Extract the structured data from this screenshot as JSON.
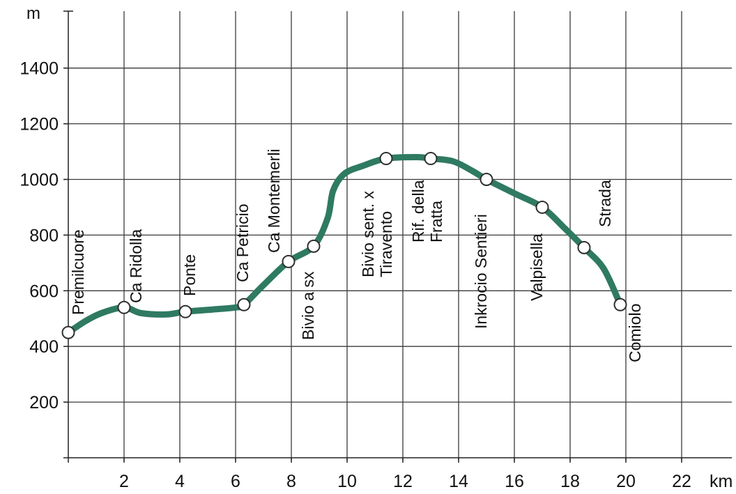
{
  "chart_data": {
    "type": "line",
    "y_unit": "m",
    "x_unit": "km",
    "xlim": [
      0,
      24
    ],
    "ylim": [
      0,
      1550
    ],
    "grid": true,
    "line_color": "#2f7a62",
    "x_ticks": [
      2,
      4,
      6,
      8,
      10,
      12,
      14,
      16,
      18,
      20,
      22
    ],
    "x_tick_labels": [
      "2",
      "4",
      "6",
      "8",
      "10",
      "12",
      "14",
      "16",
      "18",
      "20",
      "22"
    ],
    "y_ticks": [
      200,
      400,
      600,
      800,
      1000,
      1200,
      1400
    ],
    "y_tick_labels": [
      "200",
      "400",
      "600",
      "800",
      "1000",
      "1200",
      "1400"
    ],
    "profile": [
      [
        0,
        450
      ],
      [
        0.6,
        490
      ],
      [
        1.2,
        520
      ],
      [
        2.0,
        540
      ],
      [
        2.6,
        520
      ],
      [
        3.5,
        515
      ],
      [
        4.2,
        525
      ],
      [
        5.2,
        533
      ],
      [
        6.0,
        540
      ],
      [
        6.3,
        550
      ],
      [
        7.0,
        620
      ],
      [
        7.9,
        705
      ],
      [
        8.8,
        760
      ],
      [
        9.3,
        860
      ],
      [
        9.5,
        960
      ],
      [
        9.9,
        1020
      ],
      [
        10.6,
        1050
      ],
      [
        11.4,
        1075
      ],
      [
        12.5,
        1080
      ],
      [
        13.0,
        1075
      ],
      [
        13.8,
        1065
      ],
      [
        14.5,
        1030
      ],
      [
        15.0,
        1000
      ],
      [
        16.0,
        950
      ],
      [
        17.0,
        900
      ],
      [
        17.8,
        825
      ],
      [
        18.5,
        755
      ],
      [
        19.2,
        680
      ],
      [
        19.8,
        550
      ]
    ],
    "waypoints": [
      {
        "name": "Premilcuore",
        "lines": [
          "Premilcuore"
        ],
        "x": 0,
        "y": 450
      },
      {
        "name": "Ca Ridolla",
        "lines": [
          "Ca Ridolla"
        ],
        "x": 2.0,
        "y": 540
      },
      {
        "name": "Ponte",
        "lines": [
          "Ponte"
        ],
        "x": 4.2,
        "y": 525
      },
      {
        "name": "Ca Petricio",
        "lines": [
          "Ca Petricio"
        ],
        "x": 6.3,
        "y": 550
      },
      {
        "name": "Ca Montemerli",
        "lines": [
          "Ca Montemerli"
        ],
        "x": 7.9,
        "y": 705
      },
      {
        "name": "Bivio a sx",
        "lines": [
          "Bivio a sx"
        ],
        "x": 8.8,
        "y": 760
      },
      {
        "name": "Bivio sent. x Tiravento",
        "lines": [
          "Bivio sent. x",
          "Tiravento"
        ],
        "x": 11.4,
        "y": 1075
      },
      {
        "name": "Rif. della Fratta",
        "lines": [
          "Rif. della",
          "Fratta"
        ],
        "x": 13.0,
        "y": 1075
      },
      {
        "name": "Inkrocio Sentieri",
        "lines": [
          "Inkrocio Sentieri"
        ],
        "x": 15.0,
        "y": 1000
      },
      {
        "name": "Valpisella",
        "lines": [
          "Valpisella"
        ],
        "x": 17.0,
        "y": 900
      },
      {
        "name": "Strada",
        "lines": [
          "Strada"
        ],
        "x": 18.5,
        "y": 755
      },
      {
        "name": "Comiolo",
        "lines": [
          "Comiolo"
        ],
        "x": 19.8,
        "y": 550
      }
    ]
  }
}
